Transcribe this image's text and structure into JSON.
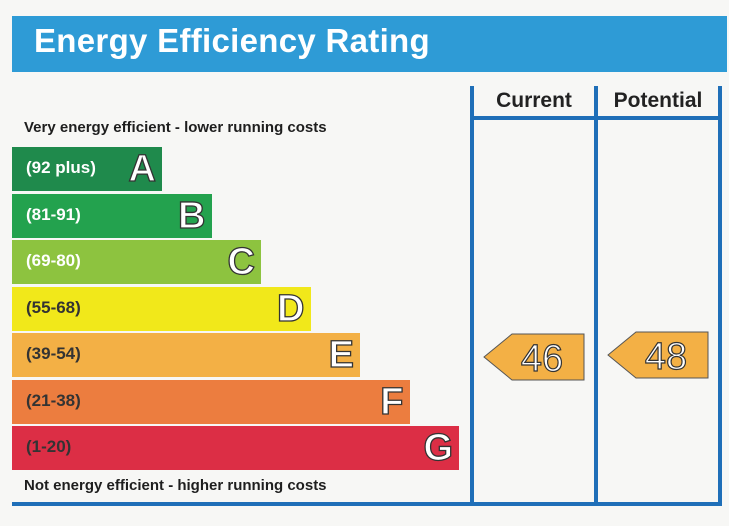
{
  "title": "Energy Efficiency Rating",
  "top_caption": "Very energy efficient - lower running costs",
  "bottom_caption": "Not energy efficient - higher running costs",
  "columns": {
    "current": "Current",
    "potential": "Potential"
  },
  "chart_data": {
    "type": "bar",
    "bands": [
      {
        "letter": "A",
        "range": "(92 plus)",
        "color": "#1f8a4c",
        "text_color": "#ffffff"
      },
      {
        "letter": "B",
        "range": "(81-91)",
        "color": "#23a24e",
        "text_color": "#ffffff"
      },
      {
        "letter": "C",
        "range": "(69-80)",
        "color": "#8dc33f",
        "text_color": "#ffffff"
      },
      {
        "letter": "D",
        "range": "(55-68)",
        "color": "#f1e81a",
        "text_color": "#333333"
      },
      {
        "letter": "E",
        "range": "(39-54)",
        "color": "#f3b045",
        "text_color": "#333333"
      },
      {
        "letter": "F",
        "range": "(21-38)",
        "color": "#ec7d3f",
        "text_color": "#333333"
      },
      {
        "letter": "G",
        "range": "(1-20)",
        "color": "#dc2e45",
        "text_color": "#333333"
      }
    ],
    "current": {
      "value": 46,
      "band": "E",
      "color": "#f3b045"
    },
    "potential": {
      "value": 48,
      "band": "E",
      "color": "#f3b045"
    }
  }
}
